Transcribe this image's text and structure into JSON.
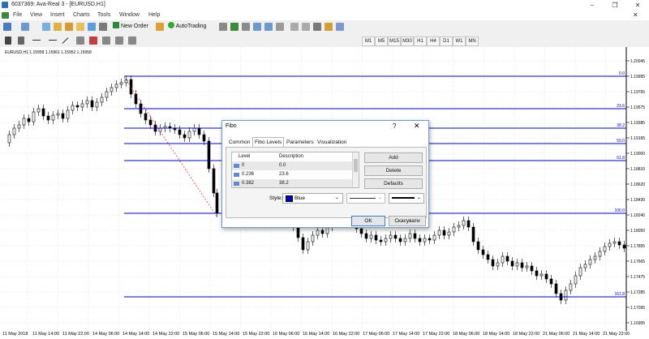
{
  "window": {
    "title": "6037369: Ava-Real 3 - [EURUSD,H1]",
    "minimize": "–",
    "restore": "❐",
    "close": "✕",
    "doc_close": "✕"
  },
  "menu": [
    "File",
    "View",
    "Insert",
    "Charts",
    "Tools",
    "Window",
    "Help"
  ],
  "toolbar": {
    "new_order": "New Order",
    "autotrading": "AutoTrading"
  },
  "timeframes": [
    "M1",
    "M5",
    "M15",
    "M30",
    "H1",
    "H4",
    "D1",
    "W1",
    "MN"
  ],
  "chart": {
    "symbol_info": "EURUSD,H1  1.15958 1.15961 1.15952 1.15958",
    "price_labels": [
      "1.20045",
      "1.19995",
      "1.19765",
      "1.19575",
      "1.19385",
      "1.19195",
      "1.19000",
      "1.18810",
      "1.18620",
      "1.18430",
      "1.18240",
      "1.18050",
      "1.17855",
      "1.17665",
      "1.17475",
      "1.17285",
      "1.17095",
      "1.16905"
    ],
    "time_labels": [
      "11 May 2018",
      "11 May 14:00",
      "11 May 22:00",
      "14 May 06:00",
      "14 May 14:00",
      "14 May 22:00",
      "15 May 06:00",
      "15 May 14:00",
      "15 May 22:00",
      "16 May 06:00",
      "16 May 14:00",
      "16 May 22:00",
      "17 May 06:00",
      "17 May 14:00",
      "17 May 22:00",
      "18 May 06:00",
      "18 May 14:00",
      "18 May 22:00",
      "21 May 06:00",
      "21 May 14:00",
      "21 May 22:00"
    ],
    "fibo_labels": [
      "0.0",
      "23.6",
      "38.2",
      "50.0",
      "61.8",
      "100.0",
      "161.8"
    ],
    "line_color": "#0000cc"
  },
  "dialog": {
    "title": "Fibo",
    "help": "?",
    "close": "✕",
    "tabs": [
      "Common",
      "Fibo Levels",
      "Parameters",
      "Visualization"
    ],
    "columns": {
      "level": "Level",
      "description": "Description"
    },
    "rows": [
      {
        "level": "0",
        "description": "0.0"
      },
      {
        "level": "0.236",
        "description": "23.6"
      },
      {
        "level": "0.382",
        "description": "38.2"
      }
    ],
    "buttons": {
      "add": "Add",
      "delete": "Delete",
      "defaults": "Defaults",
      "ok": "OK",
      "cancel": "Скасувати"
    },
    "style_label": "Style:",
    "color_value": "Blue"
  }
}
